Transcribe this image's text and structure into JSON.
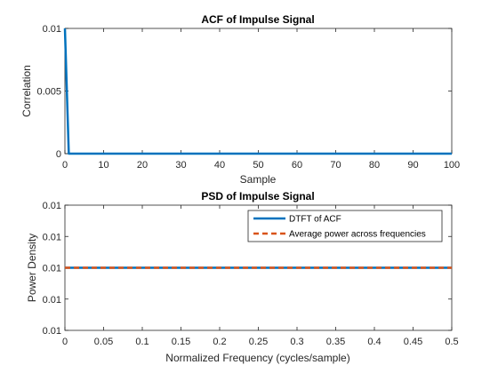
{
  "chart_data": [
    {
      "type": "line",
      "title": "ACF of Impulse Signal",
      "xlabel": "Sample",
      "ylabel": "Correlation",
      "xlim": [
        0,
        100
      ],
      "ylim": [
        0,
        0.01
      ],
      "xticks": [
        0,
        10,
        20,
        30,
        40,
        50,
        60,
        70,
        80,
        90,
        100
      ],
      "xtick_labels": [
        "0",
        "10",
        "20",
        "30",
        "40",
        "50",
        "60",
        "70",
        "80",
        "90",
        "100"
      ],
      "yticks": [
        0,
        0.005,
        0.01
      ],
      "ytick_labels": [
        "0",
        "0.005",
        "0.01"
      ],
      "grid": false,
      "series": [
        {
          "style": "solid",
          "color": "#0072BD",
          "x": [
            0,
            1,
            100
          ],
          "y": [
            0.01,
            0,
            0
          ]
        }
      ]
    },
    {
      "type": "line",
      "title": "PSD of Impulse Signal",
      "xlabel": "Normalized Frequency (cycles/sample)",
      "ylabel": "Power Density",
      "xlim": [
        0,
        0.5
      ],
      "ylim": [
        0.0098,
        0.0102
      ],
      "xticks": [
        0,
        0.05,
        0.1,
        0.15,
        0.2,
        0.25,
        0.3,
        0.35,
        0.4,
        0.45,
        0.5
      ],
      "xtick_labels": [
        "0",
        "0.05",
        "0.1",
        "0.15",
        "0.2",
        "0.25",
        "0.3",
        "0.35",
        "0.4",
        "0.45",
        "0.5"
      ],
      "yticks": [
        0.0098,
        0.0099,
        0.01,
        0.0101,
        0.0102
      ],
      "ytick_labels": [
        "0.01",
        "0.01",
        "0.01",
        "0.01",
        "0.01"
      ],
      "grid": false,
      "legend_position": "top-right",
      "series": [
        {
          "name": "DTFT of ACF",
          "style": "solid",
          "color": "#0072BD",
          "x": [
            0,
            0.5
          ],
          "y": [
            0.01,
            0.01
          ]
        },
        {
          "name": "Average power across frequencies",
          "style": "dashed",
          "color": "#D95319",
          "x": [
            0,
            0.5
          ],
          "y": [
            0.01,
            0.01
          ]
        }
      ]
    }
  ]
}
